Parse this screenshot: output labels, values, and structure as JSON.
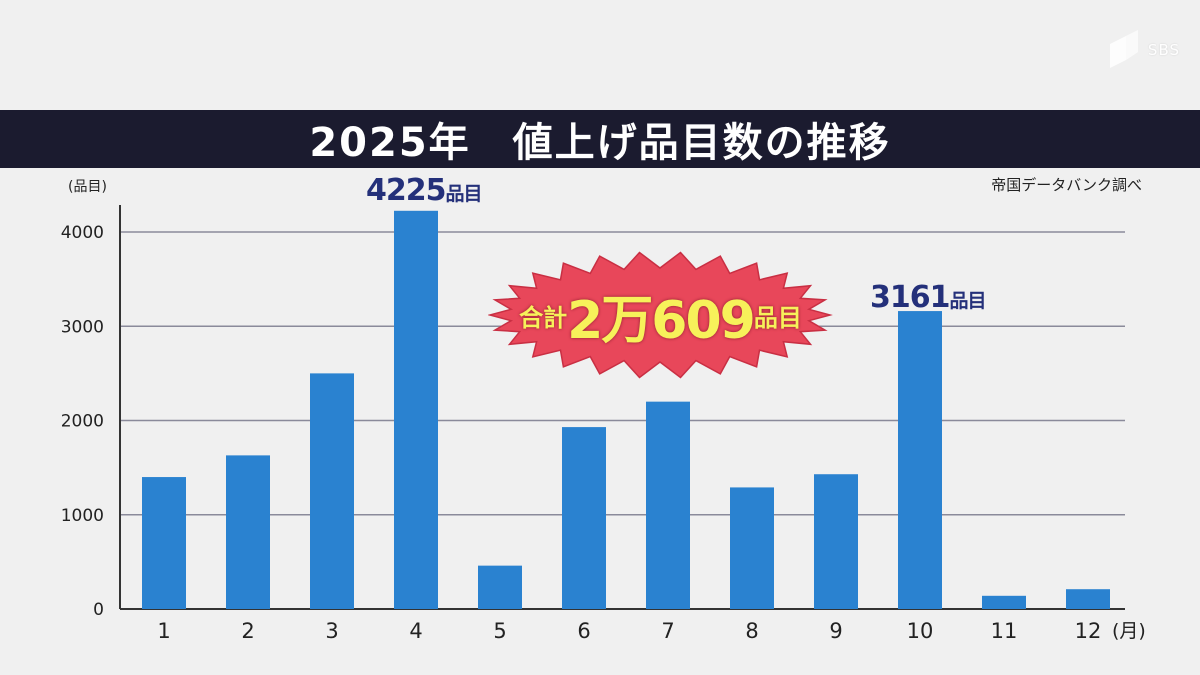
{
  "branding": {
    "logo_text": "SBS"
  },
  "title": "2025年　値上げ品目数の推移",
  "source": "帝国データバンク調べ",
  "unit_y": "(品目)",
  "unit_x": "(月)",
  "colors": {
    "bar": "#2a82d0",
    "title_bg": "#1b1b2f",
    "callout": "#24307a",
    "burst_fill": "#e8475a",
    "burst_text": "#f7f15a"
  },
  "callouts": {
    "april": {
      "value": "4225",
      "unit": "品目"
    },
    "october": {
      "value": "3161",
      "unit": "品目"
    }
  },
  "total": {
    "prefix": "合計",
    "value": "2万609",
    "suffix": "品目"
  },
  "chart_data": {
    "type": "bar",
    "title": "2025年　値上げ品目数の推移",
    "xlabel": "(月)",
    "ylabel": "(品目)",
    "categories": [
      "1",
      "2",
      "3",
      "4",
      "5",
      "6",
      "7",
      "8",
      "9",
      "10",
      "11",
      "12"
    ],
    "values": [
      1400,
      1630,
      2500,
      4225,
      460,
      1930,
      2200,
      1290,
      1430,
      3161,
      140,
      210
    ],
    "ylim": [
      0,
      4000
    ],
    "yticks": [
      "0",
      "1000",
      "2000",
      "3000",
      "4000"
    ],
    "grid": true,
    "legend": "none"
  }
}
